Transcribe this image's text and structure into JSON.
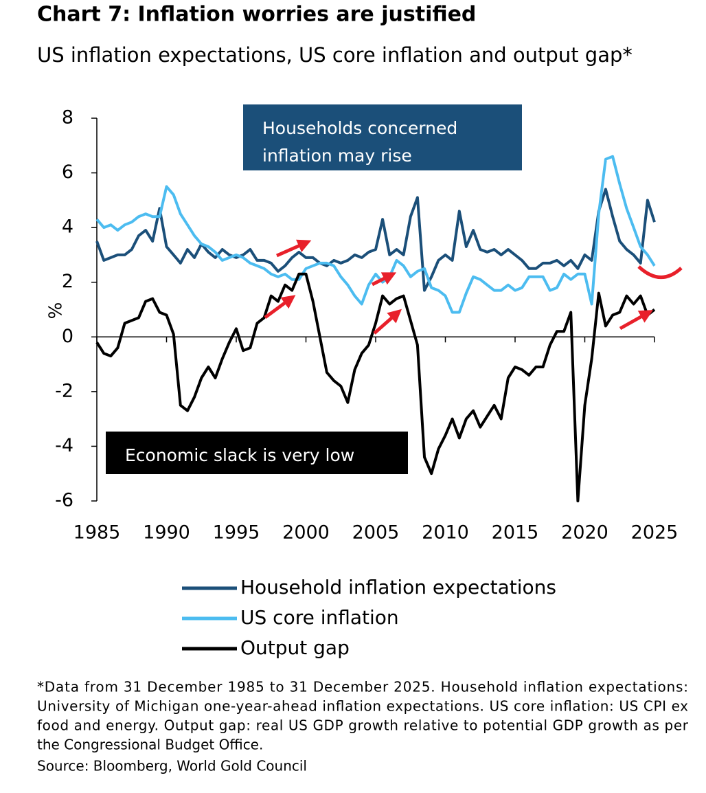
{
  "chart_data": {
    "type": "line",
    "title": "Chart 7: Inflation worries are justified",
    "subtitle": "US inflation expectations, US core inflation and output gap*",
    "ylabel": "%",
    "x": [
      1985,
      1985.5,
      1986,
      1986.5,
      1987,
      1987.5,
      1988,
      1988.5,
      1989,
      1989.5,
      1990,
      1990.5,
      1991,
      1991.5,
      1992,
      1992.5,
      1993,
      1993.5,
      1994,
      1994.5,
      1995,
      1995.5,
      1996,
      1996.5,
      1997,
      1997.5,
      1998,
      1998.5,
      1999,
      1999.5,
      2000,
      2000.5,
      2001,
      2001.5,
      2002,
      2002.5,
      2003,
      2003.5,
      2004,
      2004.5,
      2005,
      2005.5,
      2006,
      2006.5,
      2007,
      2007.5,
      2008,
      2008.5,
      2009,
      2009.5,
      2010,
      2010.5,
      2011,
      2011.5,
      2012,
      2012.5,
      2013,
      2013.5,
      2014,
      2014.5,
      2015,
      2015.5,
      2016,
      2016.5,
      2017,
      2017.5,
      2018,
      2018.5,
      2019,
      2019.5,
      2020,
      2020.5,
      2021,
      2021.5,
      2022,
      2022.5,
      2023,
      2023.5,
      2024,
      2024.5,
      2025
    ],
    "series": [
      {
        "name": "Household inflation expectations",
        "color": "#1b4f79",
        "values": [
          3.5,
          2.8,
          2.9,
          3.0,
          3.0,
          3.2,
          3.7,
          3.9,
          3.5,
          4.7,
          3.3,
          3.0,
          2.7,
          3.2,
          2.9,
          3.4,
          3.1,
          2.9,
          3.2,
          3.0,
          2.9,
          3.0,
          3.2,
          2.8,
          2.8,
          2.7,
          2.4,
          2.6,
          2.9,
          3.1,
          2.9,
          2.9,
          2.7,
          2.6,
          2.8,
          2.7,
          2.8,
          3.0,
          2.9,
          3.1,
          3.2,
          4.3,
          3.0,
          3.2,
          3.0,
          4.4,
          5.1,
          1.7,
          2.2,
          2.8,
          3.0,
          2.8,
          4.6,
          3.3,
          3.9,
          3.2,
          3.1,
          3.2,
          3.0,
          3.2,
          3.0,
          2.8,
          2.5,
          2.5,
          2.7,
          2.7,
          2.8,
          2.6,
          2.8,
          2.5,
          3.0,
          2.8,
          4.6,
          5.4,
          4.4,
          3.5,
          3.2,
          3.0,
          2.7,
          5.0,
          4.2
        ]
      },
      {
        "name": "US core inflation",
        "color": "#4cbcf0",
        "values": [
          4.3,
          4.0,
          4.1,
          3.9,
          4.1,
          4.2,
          4.4,
          4.5,
          4.4,
          4.4,
          5.5,
          5.2,
          4.5,
          4.1,
          3.7,
          3.4,
          3.3,
          3.1,
          2.8,
          2.9,
          3.0,
          2.9,
          2.7,
          2.6,
          2.5,
          2.3,
          2.2,
          2.3,
          2.1,
          2.1,
          2.5,
          2.6,
          2.7,
          2.7,
          2.6,
          2.2,
          1.9,
          1.5,
          1.2,
          1.9,
          2.3,
          2.0,
          2.2,
          2.8,
          2.6,
          2.2,
          2.4,
          2.5,
          1.8,
          1.7,
          1.5,
          0.9,
          0.9,
          1.6,
          2.2,
          2.1,
          1.9,
          1.7,
          1.7,
          1.9,
          1.7,
          1.8,
          2.2,
          2.2,
          2.2,
          1.7,
          1.8,
          2.3,
          2.1,
          2.3,
          2.3,
          1.2,
          4.5,
          6.5,
          6.6,
          5.6,
          4.7,
          4.0,
          3.3,
          3.0,
          2.6
        ]
      },
      {
        "name": "Output gap",
        "color": "#000000",
        "values": [
          -0.2,
          -0.6,
          -0.7,
          -0.4,
          0.5,
          0.6,
          0.7,
          1.3,
          1.4,
          0.9,
          0.8,
          0.1,
          -2.5,
          -2.7,
          -2.2,
          -1.5,
          -1.1,
          -1.5,
          -0.8,
          -0.2,
          0.3,
          -0.5,
          -0.4,
          0.5,
          0.7,
          1.5,
          1.3,
          1.9,
          1.7,
          2.3,
          2.3,
          1.3,
          0.0,
          -1.3,
          -1.6,
          -1.8,
          -2.4,
          -1.2,
          -0.6,
          -0.3,
          0.5,
          1.5,
          1.2,
          1.4,
          1.5,
          0.6,
          -0.3,
          -4.4,
          -5.0,
          -4.1,
          -3.6,
          -3.0,
          -3.7,
          -3.0,
          -2.7,
          -3.3,
          -2.9,
          -2.5,
          -3.0,
          -1.5,
          -1.1,
          -1.2,
          -1.4,
          -1.1,
          -1.1,
          -0.3,
          0.2,
          0.2,
          0.9,
          -6.0,
          -2.5,
          -0.8,
          1.6,
          0.4,
          0.8,
          0.9,
          1.5,
          1.2,
          1.5,
          0.8,
          1.0
        ]
      }
    ],
    "xlim": [
      1985,
      2025
    ],
    "xticks": [
      1985,
      1990,
      1995,
      2000,
      2005,
      2010,
      2015,
      2020,
      2025
    ],
    "ylim": [
      -6,
      8
    ],
    "yticks": [
      -6,
      -4,
      -2,
      0,
      2,
      4,
      6,
      8
    ],
    "annotations": [
      {
        "lines": [
          "Households concerned",
          "inflation may rise"
        ],
        "color": "#1b4f79"
      },
      {
        "lines": [
          "Economic slack is very low"
        ],
        "color": "#000000"
      }
    ],
    "footnote": [
      "*Data from 31 December 1985 to 31 December 2025. Household inflation expectations:",
      "University of Michigan one-year-ahead inflation expectations. US core inflation: US CPI ex",
      "food and energy. Output gap: real US GDP growth relative to potential GDP growth as per",
      "the Congressional Budget Office.",
      "Source: Bloomberg, World Gold Council"
    ]
  }
}
